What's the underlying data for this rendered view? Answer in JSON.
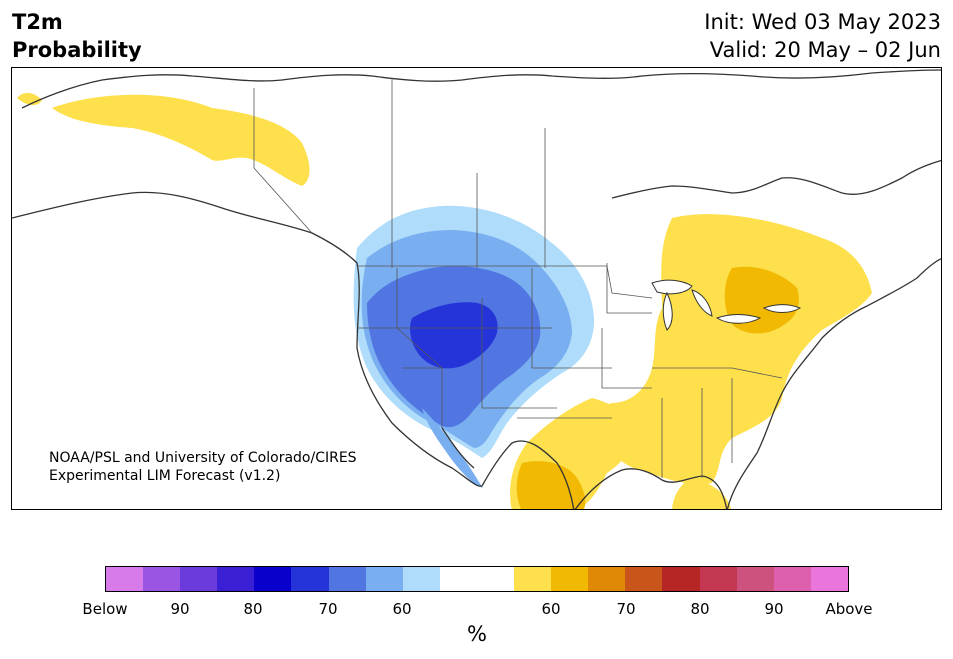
{
  "header": {
    "variable": "T2m",
    "type": "Probability",
    "init": "Init: Wed 03 May 2023",
    "valid": "Valid: 20 May – 02 Jun"
  },
  "credit": {
    "line1": "NOAA/PSL and University of Colorado/CIRES",
    "line2": "Experimental LIM Forecast (v1.2)"
  },
  "colorbar": {
    "colors": [
      "#d77aea",
      "#9a55e3",
      "#6b3bdc",
      "#3a20d4",
      "#0a00cc",
      "#2534d8",
      "#5176e2",
      "#79aef0",
      "#aedcfa",
      "#ffffff",
      "#ffffff",
      "#fde04c",
      "#f2b902",
      "#e08906",
      "#c9551b",
      "#b52624",
      "#c33751",
      "#ce527e",
      "#dc60ae",
      "#ea75db"
    ],
    "ticks": [
      "Below",
      "90",
      "80",
      "70",
      "60",
      "60",
      "70",
      "80",
      "90",
      "Above"
    ],
    "unit": "%"
  },
  "map": {
    "region": "North America",
    "fill_colors": {
      "above_60": "#fde04c",
      "above_70": "#f2b902",
      "below_60": "#aedcfa",
      "below_70": "#79aef0",
      "below_80": "#5176e2",
      "below_90": "#2534d8"
    }
  }
}
